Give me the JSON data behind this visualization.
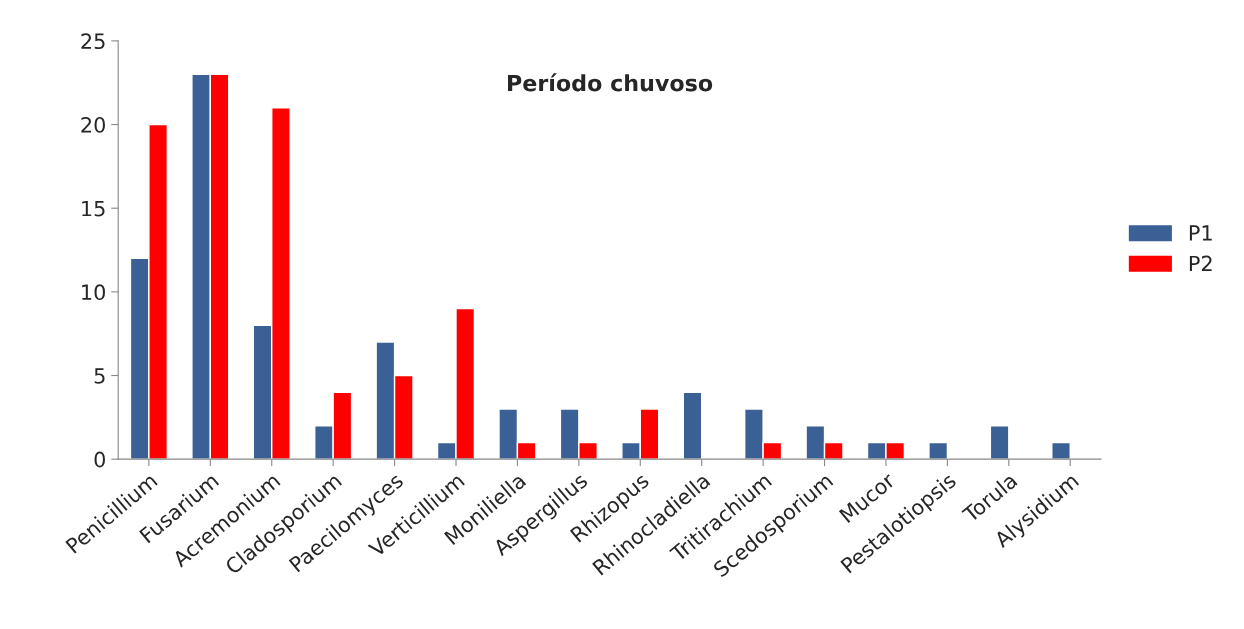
{
  "chart_data": {
    "type": "bar",
    "title": "Período chuvoso",
    "categories": [
      "Penicillium",
      "Fusarium",
      "Acremonium",
      "Cladosporium",
      "Paecilomyces",
      "Verticillium",
      "Moniliella",
      "Aspergillus",
      "Rhizopus",
      "Rhinocladiella",
      "Tritirachium",
      "Scedosporium",
      "Mucor",
      "Pestalotiopsis",
      "Torula",
      "Alysidium"
    ],
    "series": [
      {
        "name": "P1",
        "color": "#3a6096",
        "values": [
          12,
          23,
          8,
          2,
          7,
          1,
          3,
          3,
          1,
          4,
          3,
          2,
          1,
          1,
          2,
          1
        ]
      },
      {
        "name": "P2",
        "color": "#ff0000",
        "values": [
          20,
          23,
          21,
          4,
          5,
          9,
          1,
          1,
          3,
          null,
          1,
          1,
          1,
          null,
          null,
          null
        ]
      }
    ],
    "ylim": [
      0,
      25
    ],
    "yticks": [
      0,
      5,
      10,
      15,
      20,
      25
    ],
    "grid": false,
    "legend": "right"
  }
}
